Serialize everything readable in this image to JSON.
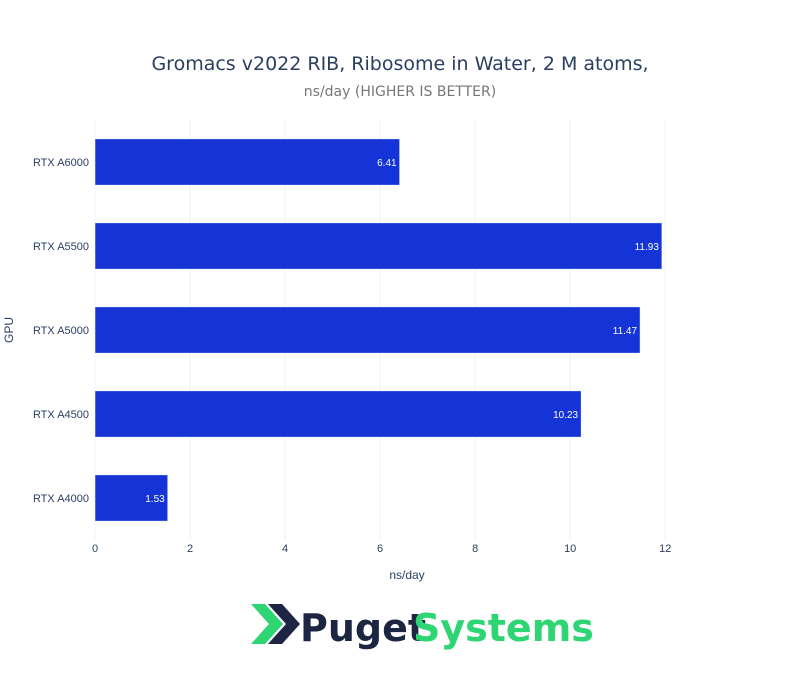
{
  "chart_data": {
    "type": "bar",
    "orientation": "horizontal",
    "title": "Gromacs v2022 RIB, Ribosome in Water, 2 M atoms,",
    "subtitle": "ns/day (HIGHER IS BETTER)",
    "xlabel": "ns/day",
    "ylabel": "GPU",
    "categories": [
      "RTX A6000",
      "RTX A5500",
      "RTX A5000",
      "RTX A4500",
      "RTX A4000"
    ],
    "values": [
      6.41,
      11.93,
      11.47,
      10.23,
      1.53
    ],
    "value_labels": [
      "6.41",
      "11.93",
      "11.47",
      "10.23",
      "1.53"
    ],
    "xlim": [
      0,
      12.9
    ],
    "xticks": [
      0,
      2,
      4,
      6,
      8,
      10,
      12
    ],
    "grid": true,
    "legend": "none",
    "bar_color": "#1434d8"
  },
  "logo": {
    "name": "Puget Systems",
    "word1": "Puget",
    "word2": "Systems",
    "color_dark": "#1c2541",
    "color_green": "#2ed573",
    "icon": "chevron-double-right-icon"
  }
}
